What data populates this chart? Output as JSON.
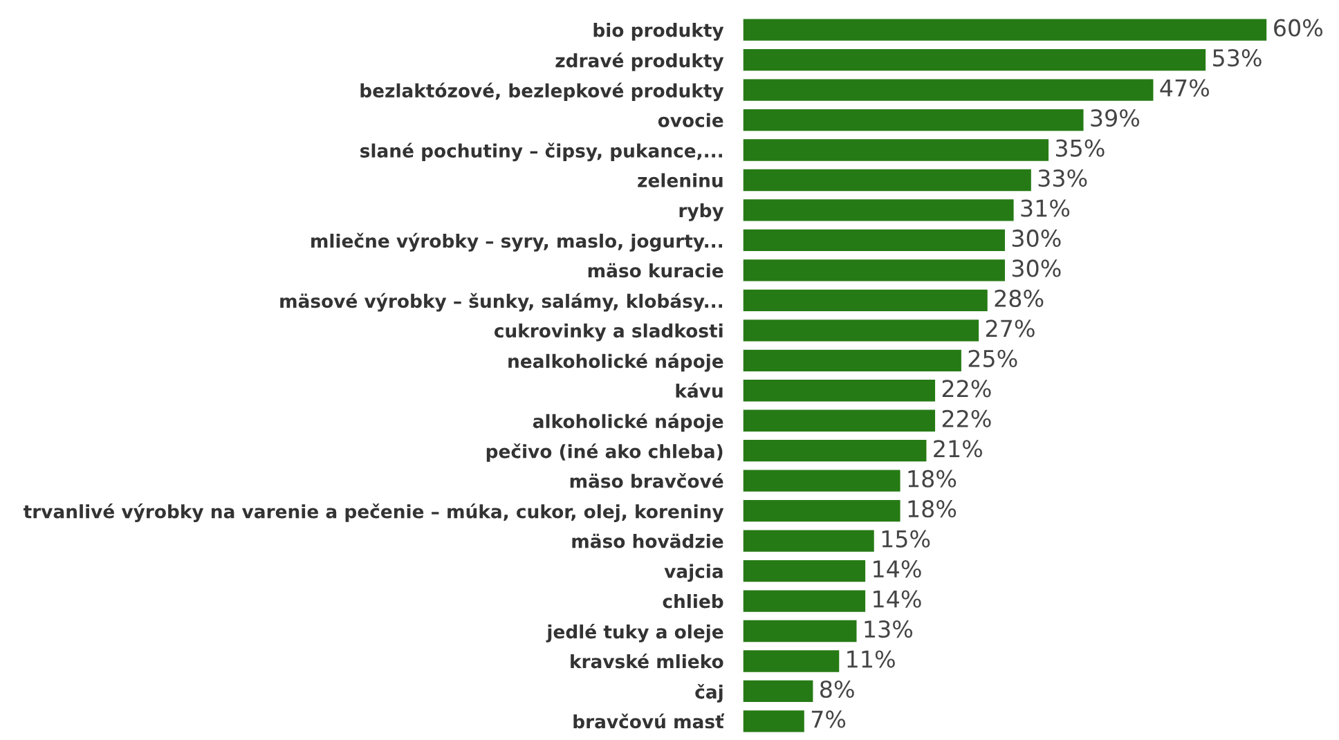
{
  "chart_data": {
    "type": "bar",
    "orientation": "horizontal",
    "color": "#267a15",
    "categories": [
      "bio produkty",
      "zdravé produkty",
      "bezlaktózové, bezlepkové produkty",
      "ovocie",
      "slané pochutiny – čipsy, pukance,...",
      "zeleninu",
      "ryby",
      "mliečne výrobky – syry, maslo, jogurty...",
      "mäso kuracie",
      "mäsové výrobky – šunky, salámy, klobásy...",
      "cukrovinky a sladkosti",
      "nealkoholické nápoje",
      "kávu",
      "alkoholické nápoje",
      "pečivo (iné ako chleba)",
      "mäso bravčové",
      "trvanlivé výrobky na varenie a pečenie – múka, cukor, olej, koreniny",
      "mäso hovädzie",
      "vajcia",
      "chlieb",
      "jedlé tuky a oleje",
      "kravské mlieko",
      "čaj",
      "bravčovú masť"
    ],
    "values": [
      60,
      53,
      47,
      39,
      35,
      33,
      31,
      30,
      30,
      28,
      27,
      25,
      22,
      22,
      21,
      18,
      18,
      15,
      14,
      14,
      13,
      11,
      8,
      7
    ],
    "value_labels": [
      "60%",
      "53%",
      "47%",
      "39%",
      "35%",
      "33%",
      "31%",
      "30%",
      "30%",
      "28%",
      "27%",
      "25%",
      "22%",
      "22%",
      "21%",
      "18%",
      "18%",
      "15%",
      "14%",
      "14%",
      "13%",
      "11%",
      "8%",
      "7%"
    ],
    "grid": false,
    "legend": false
  }
}
